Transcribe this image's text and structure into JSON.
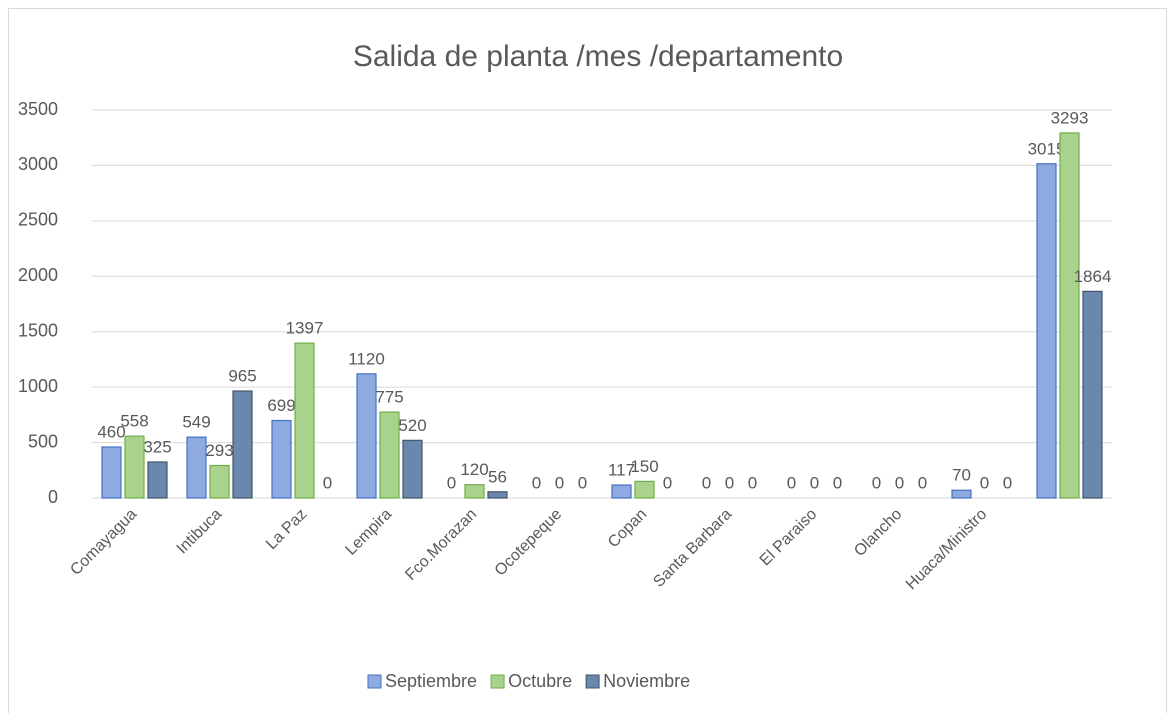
{
  "chart_data": {
    "type": "bar",
    "title": "Salida de planta /mes /departamento",
    "categories": [
      "Comayagua",
      "Intibuca",
      "La Paz",
      "Lempira",
      "Fco.Morazan",
      "Ocotepeque",
      "Copan",
      "Santa Barbara",
      "El Paraiso",
      "Olancho",
      "Huaca/Ministro",
      null
    ],
    "series": [
      {
        "name": "Septiembre",
        "color": "#8eaae0",
        "values": [
          460,
          549,
          699,
          1120,
          0,
          0,
          117,
          0,
          0,
          0,
          70,
          3015
        ]
      },
      {
        "name": "Octubre",
        "color": "#a9d38c",
        "values": [
          558,
          293,
          1397,
          775,
          120,
          0,
          150,
          0,
          0,
          0,
          0,
          3293
        ]
      },
      {
        "name": "Noviembre",
        "color": "#6a88ae",
        "values": [
          325,
          965,
          0,
          520,
          56,
          0,
          0,
          0,
          0,
          0,
          0,
          1864
        ]
      }
    ],
    "ylim": [
      0,
      3500
    ],
    "yticks": [
      0,
      500,
      1000,
      1500,
      2000,
      2500,
      3000,
      3500
    ],
    "grid": true,
    "legend": "bottom"
  }
}
